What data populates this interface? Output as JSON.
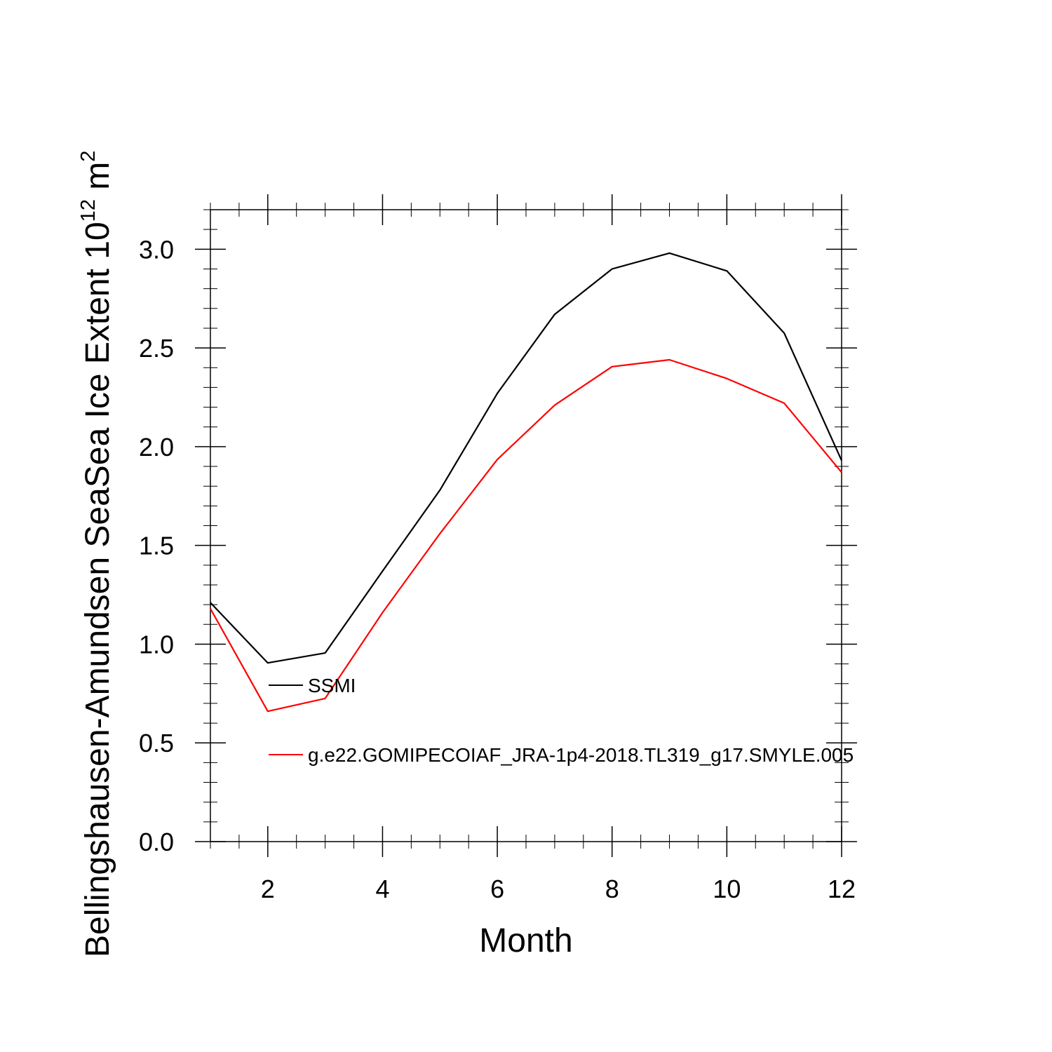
{
  "chart_data": {
    "type": "line",
    "title": "",
    "xlabel": "Month",
    "ylabel": {
      "main": "Bellingshausen-Amundsen SeaSea Ice Extent 10",
      "exponent": "12",
      "unit": " m",
      "unit_exponent": "2"
    },
    "xlim": [
      1,
      12
    ],
    "ylim": [
      0,
      3.2
    ],
    "xticks": [
      2,
      4,
      6,
      8,
      10,
      12
    ],
    "xtick_labels": [
      "2",
      "4",
      "6",
      "8",
      "10",
      "12"
    ],
    "yticks": [
      0,
      0.5,
      1.0,
      1.5,
      2.0,
      2.5,
      3.0
    ],
    "ytick_labels": [
      "0.0",
      "0.5",
      "1.0",
      "1.5",
      "2.0",
      "2.5",
      "3.0"
    ],
    "x": [
      1,
      2,
      3,
      4,
      5,
      6,
      7,
      8,
      9,
      10,
      11,
      12
    ],
    "series": [
      {
        "name": "SSMI",
        "color": "#000000",
        "values": [
          1.21,
          0.905,
          0.955,
          1.37,
          1.78,
          2.27,
          2.67,
          2.9,
          2.98,
          2.89,
          2.575,
          1.93
        ]
      },
      {
        "name": "g.e22.GOMIPECOIAF_JRA-1p4-2018.TL319_g17.SMYLE.005",
        "color": "#ff0000",
        "values": [
          1.18,
          0.66,
          0.725,
          1.16,
          1.56,
          1.935,
          2.21,
          2.405,
          2.44,
          2.345,
          2.22,
          1.87
        ]
      }
    ],
    "legend_position": "lower-left, inside plot",
    "grid": false
  }
}
